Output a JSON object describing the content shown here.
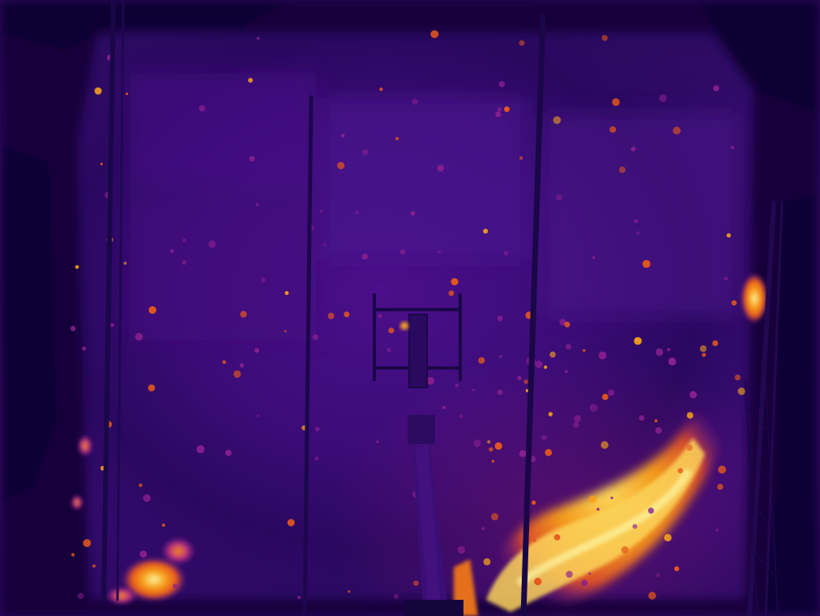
{
  "image": {
    "type": "thermal-infrared-photo",
    "palette": "inferno",
    "colors": {
      "background_dark": "#14063d",
      "ambient": "#3c0c78",
      "warm": "#8a1f8f",
      "hot": "#e4571c",
      "hotter": "#f7a21a",
      "hottest": "#fdf4a0"
    }
  }
}
